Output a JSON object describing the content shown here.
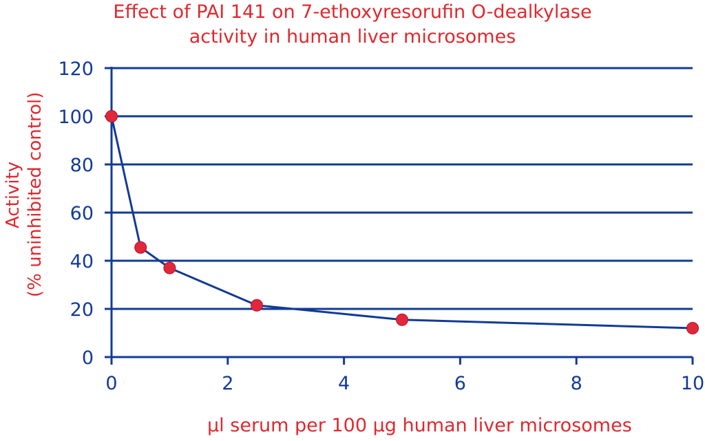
{
  "colors": {
    "accent": "#e0282e",
    "axis": "#123a96",
    "marker": "#e0283a"
  },
  "chart_data": {
    "type": "line",
    "title_lines": [
      "Effect of PAI 141 on 7-ethoxyresorufin O-dealkylase",
      "activity in human liver microsomes"
    ],
    "xlabel": "µl serum per 100 µg human liver microsomes",
    "ylabel_lines": [
      "Activity",
      "(% uninhibited control)"
    ],
    "xlim": [
      0,
      10
    ],
    "ylim": [
      0,
      120
    ],
    "xticks": [
      0,
      2,
      4,
      6,
      8,
      10
    ],
    "yticks": [
      0,
      20,
      40,
      60,
      80,
      100,
      120
    ],
    "grid": "horizontal",
    "series": [
      {
        "x": [
          0,
          0.5,
          1,
          2.5,
          5,
          10
        ],
        "y": [
          100,
          45.5,
          37,
          21.5,
          15.5,
          12
        ]
      }
    ]
  }
}
